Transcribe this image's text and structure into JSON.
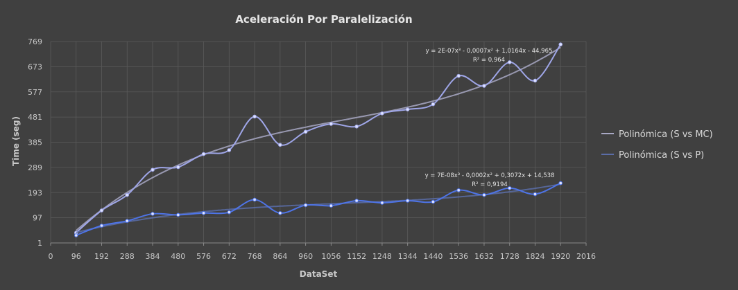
{
  "chart_data": {
    "type": "line",
    "title": "Aceleración Por Paralelización",
    "xlabel": "DataSet",
    "ylabel": "Time (seg)",
    "xlim": [
      0,
      2016
    ],
    "ylim": [
      1,
      769
    ],
    "x_ticks": [
      "0",
      "96",
      "192",
      "288",
      "384",
      "480",
      "576",
      "672",
      "768",
      "864",
      "960",
      "1056",
      "1152",
      "1248",
      "1344",
      "1440",
      "1536",
      "1632",
      "1728",
      "1824",
      "1920",
      "2016"
    ],
    "y_ticks": [
      "1",
      "97",
      "193",
      "289",
      "385",
      "481",
      "577",
      "673",
      "769"
    ],
    "grid": true,
    "legend_position": "right",
    "x": [
      96,
      192,
      288,
      384,
      480,
      576,
      672,
      768,
      864,
      960,
      1056,
      1152,
      1248,
      1344,
      1440,
      1536,
      1632,
      1728,
      1824,
      1920
    ],
    "series": [
      {
        "name": "Polinómica (S vs MC)",
        "color": "#9fa6e8",
        "values": [
          40,
          125,
          184,
          280,
          290,
          340,
          355,
          483,
          375,
          425,
          455,
          445,
          495,
          510,
          530,
          638,
          600,
          690,
          620,
          758
        ],
        "trend_equation": "y = 2E-07x³ - 0,0007x² + 1,0164x - 44,965",
        "r_squared": "R² = 0,964"
      },
      {
        "name": "Polinómica (S vs P)",
        "color": "#4e74e8",
        "values": [
          30,
          67,
          85,
          112,
          108,
          115,
          118,
          166,
          115,
          145,
          143,
          162,
          154,
          162,
          158,
          202,
          184,
          210,
          187,
          229
        ],
        "trend_equation": "y = 7E-08x³ - 0,0002x² + 0,3072x + 14,538",
        "r_squared": "R² = 0,9194"
      }
    ]
  }
}
